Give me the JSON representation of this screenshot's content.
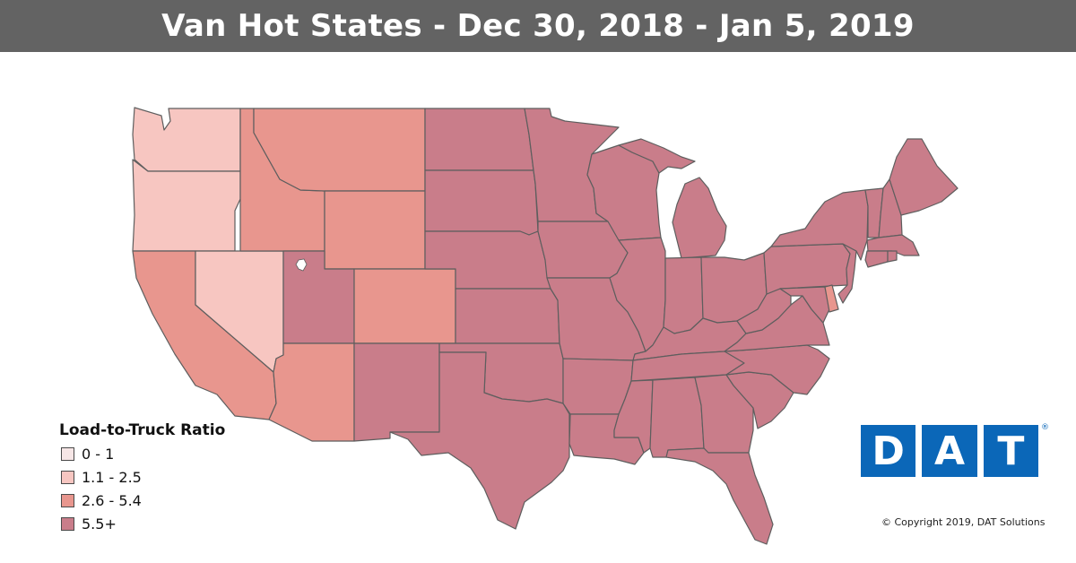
{
  "title": "Van Hot States - Dec 30, 2018 - Jan 5, 2019",
  "legend": {
    "title": "Load-to-Truck Ratio",
    "items": [
      {
        "label": "0 - 1",
        "color": "#f6e6e6"
      },
      {
        "label": "1.1 - 2.5",
        "color": "#f7c6c1"
      },
      {
        "label": "2.6 - 5.4",
        "color": "#e8968e"
      },
      {
        "label": "5.5+",
        "color": "#c97d8a"
      }
    ]
  },
  "logo": {
    "letters": [
      "D",
      "A",
      "T"
    ],
    "mark": "®",
    "color": "#0b67b8"
  },
  "copyright": "© Copyright 2019, DAT Solutions",
  "states": {
    "WA": "1.1 - 2.5",
    "OR": "1.1 - 2.5",
    "NV": "1.1 - 2.5",
    "CA": "2.6 - 5.4",
    "ID": "2.6 - 5.4",
    "MT": "2.6 - 5.4",
    "WY": "2.6 - 5.4",
    "CO": "2.6 - 5.4",
    "AZ": "2.6 - 5.4",
    "UT": "5.5+",
    "NM": "5.5+",
    "ND": "5.5+",
    "SD": "5.5+",
    "NE": "5.5+",
    "KS": "5.5+",
    "OK": "5.5+",
    "TX": "5.5+",
    "MN": "5.5+",
    "IA": "5.5+",
    "MO": "5.5+",
    "AR": "5.5+",
    "LA": "5.5+",
    "WI": "5.5+",
    "IL": "5.5+",
    "MI": "5.5+",
    "IN": "5.5+",
    "OH": "5.5+",
    "KY": "5.5+",
    "TN": "5.5+",
    "MS": "5.5+",
    "AL": "5.5+",
    "GA": "5.5+",
    "FL": "5.5+",
    "SC": "5.5+",
    "NC": "5.5+",
    "VA": "5.5+",
    "WV": "5.5+",
    "PA": "5.5+",
    "NY": "5.5+",
    "NJ": "5.5+",
    "DE": "2.6 - 5.4",
    "MD": "5.5+",
    "CT": "5.5+",
    "RI": "5.5+",
    "MA": "5.5+",
    "VT": "5.5+",
    "NH": "5.5+",
    "ME": "5.5+"
  }
}
